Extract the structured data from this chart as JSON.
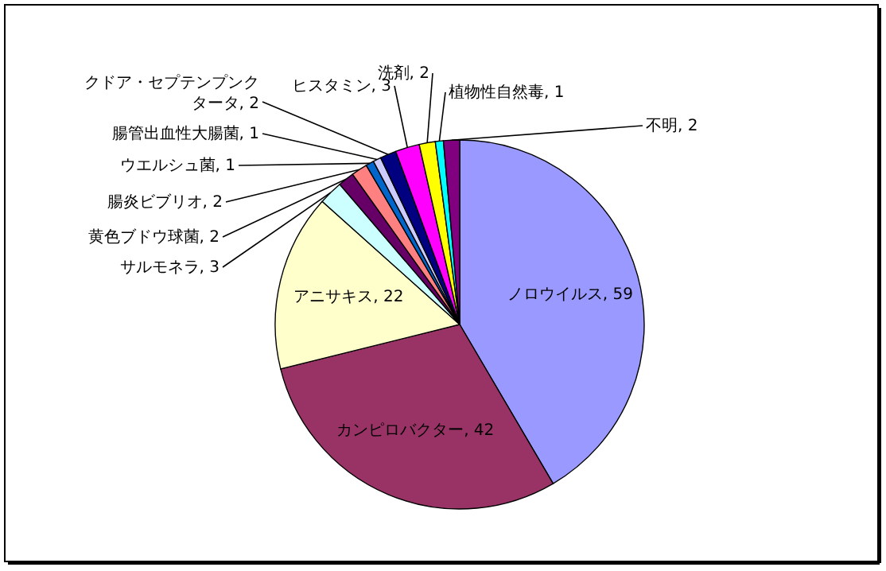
{
  "chart_data": {
    "type": "pie",
    "categories": [
      "ノロウイルス",
      "カンピロバクター",
      "アニサキス",
      "サルモネラ",
      "黄色ブドウ球菌",
      "腸炎ビブリオ",
      "ウエルシュ菌",
      "腸管出血性大腸菌",
      "クドア・セプテンプンクタータ",
      "ヒスタミン",
      "洗剤",
      "植物性自然毒",
      "不明"
    ],
    "values": [
      59,
      42,
      22,
      3,
      2,
      2,
      1,
      1,
      2,
      3,
      2,
      1,
      2
    ],
    "colors": [
      "#9999ff",
      "#993366",
      "#ffffcc",
      "#ccffff",
      "#660066",
      "#ff8080",
      "#0066cc",
      "#ccccff",
      "#000080",
      "#ff00ff",
      "#ffff00",
      "#00ffff",
      "#800080"
    ],
    "value_labels": [
      ", 59",
      ", 42",
      ", 22",
      ", 3",
      ", 2",
      ", 2",
      ", 1",
      ", 1",
      ", 2",
      ", 3",
      ", 2",
      ", 1",
      ", 2"
    ]
  }
}
